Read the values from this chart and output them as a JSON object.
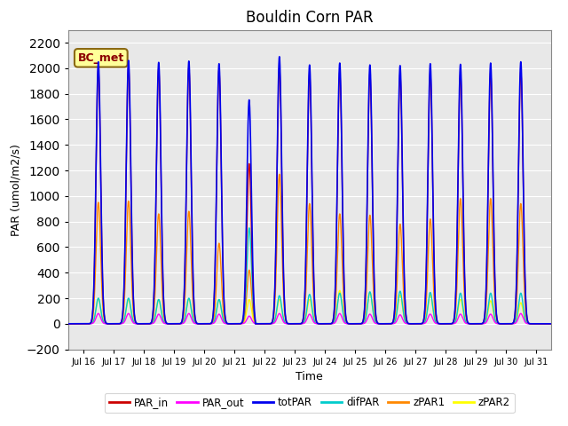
{
  "title": "Bouldin Corn PAR",
  "ylabel": "PAR (umol/m2/s)",
  "xlabel": "Time",
  "ylim": [
    -200,
    2300
  ],
  "yticks": [
    -200,
    0,
    200,
    400,
    600,
    800,
    1000,
    1200,
    1400,
    1600,
    1800,
    2000,
    2200
  ],
  "xlim_days": [
    15.5,
    31.5
  ],
  "xtick_days": [
    16,
    17,
    18,
    19,
    20,
    21,
    22,
    23,
    24,
    25,
    26,
    27,
    28,
    29,
    30,
    31
  ],
  "xtick_labels": [
    "Jul 16",
    "Jul 17",
    "Jul 18",
    "Jul 19",
    "Jul 20",
    "Jul 21",
    "Jul 22",
    "Jul 23",
    "Jul 24",
    "Jul 25",
    "Jul 26",
    "Jul 27",
    "Jul 28",
    "Jul 29",
    "Jul 30",
    "Jul 31"
  ],
  "series": {
    "PAR_in": {
      "color": "#cc0000"
    },
    "PAR_out": {
      "color": "#ff00ff"
    },
    "totPAR": {
      "color": "#0000ee"
    },
    "difPAR": {
      "color": "#00cccc"
    },
    "zPAR1": {
      "color": "#ff8800"
    },
    "zPAR2": {
      "color": "#ffff00"
    }
  },
  "legend_items": [
    {
      "label": "PAR_in",
      "color": "#cc0000"
    },
    {
      "label": "PAR_out",
      "color": "#ff00ff"
    },
    {
      "label": "totPAR",
      "color": "#0000ee"
    },
    {
      "label": "difPAR",
      "color": "#00cccc"
    },
    {
      "label": "zPAR1",
      "color": "#ff8800"
    },
    {
      "label": "zPAR2",
      "color": "#ffff00"
    }
  ],
  "annotation_text": "BC_met",
  "bg_color": "#e8e8e8",
  "title_fontsize": 12,
  "day_nums": [
    16,
    17,
    18,
    19,
    20,
    21,
    22,
    23,
    24,
    25,
    26,
    27,
    28,
    29,
    30
  ],
  "totPAR_peaks": [
    2050,
    2060,
    2045,
    2055,
    2035,
    1790,
    2090,
    2025,
    2040,
    2025,
    2020,
    2035,
    2030,
    2040,
    2050
  ],
  "PARin_peaks": [
    2000,
    2020,
    2000,
    2010,
    1990,
    1280,
    2010,
    1960,
    1970,
    1960,
    1955,
    1965,
    1960,
    1970,
    1980
  ],
  "PARout_peaks": [
    80,
    80,
    75,
    80,
    75,
    60,
    80,
    75,
    80,
    75,
    70,
    75,
    75,
    75,
    80
  ],
  "difPAR_peaks": [
    200,
    200,
    190,
    200,
    190,
    750,
    220,
    230,
    240,
    250,
    255,
    245,
    240,
    240,
    240
  ],
  "zPAR1_peaks": [
    950,
    960,
    860,
    880,
    630,
    420,
    1170,
    940,
    860,
    850,
    780,
    820,
    980,
    980,
    940
  ],
  "zPAR2_peaks": [
    200,
    190,
    190,
    195,
    190,
    190,
    195,
    195,
    260,
    245,
    225,
    225,
    195,
    180,
    165
  ],
  "sigma_hrs": 1.8,
  "day21_totPAR_special": true
}
